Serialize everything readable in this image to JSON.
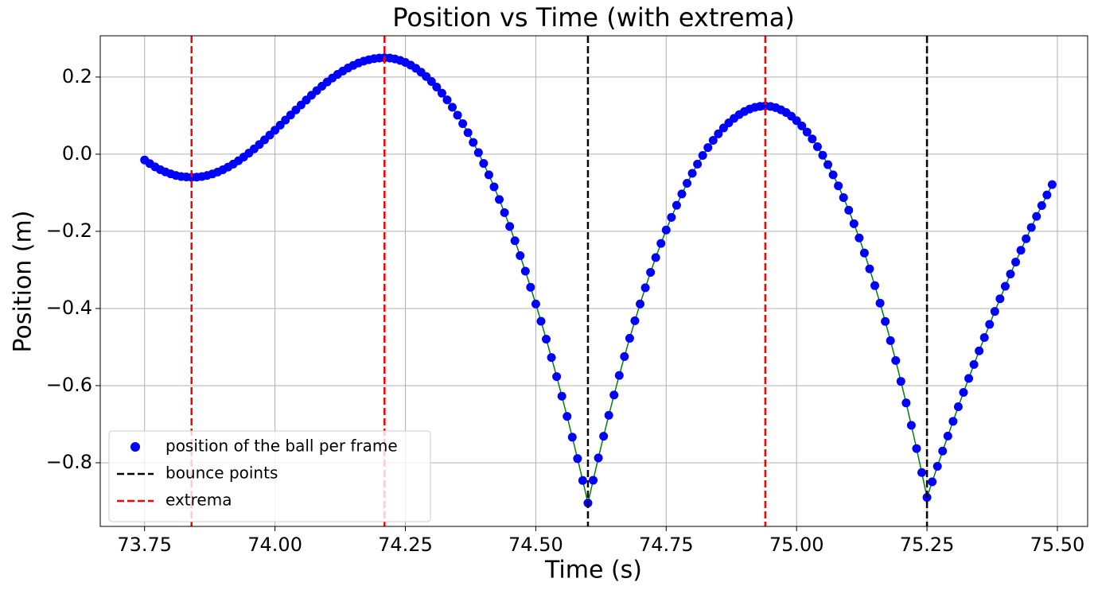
{
  "chart_data": {
    "type": "scatter",
    "title": "Position vs Time (with extrema)",
    "x_label": "Time (s)",
    "y_label": "Position (m)",
    "x": [
      73.75,
      73.76,
      73.77,
      73.78,
      73.79,
      73.8,
      73.81,
      73.82,
      73.83,
      73.84,
      73.85,
      73.86,
      73.87,
      73.88,
      73.89,
      73.9,
      73.91,
      73.92,
      73.93,
      73.94,
      73.95,
      73.96,
      73.97,
      73.98,
      73.99,
      74,
      74.01,
      74.02,
      74.03,
      74.04,
      74.05,
      74.06,
      74.07,
      74.08,
      74.09,
      74.1,
      74.11,
      74.12,
      74.13,
      74.14,
      74.15,
      74.16,
      74.17,
      74.18,
      74.19,
      74.2,
      74.21,
      74.22,
      74.23,
      74.24,
      74.25,
      74.26,
      74.27,
      74.28,
      74.29,
      74.3,
      74.31,
      74.32,
      74.33,
      74.34,
      74.35,
      74.36,
      74.37,
      74.38,
      74.39,
      74.4,
      74.41,
      74.42,
      74.43,
      74.44,
      74.45,
      74.46,
      74.47,
      74.48,
      74.49,
      74.5,
      74.51,
      74.52,
      74.53,
      74.54,
      74.55,
      74.56,
      74.57,
      74.58,
      74.59,
      74.6,
      74.61,
      74.62,
      74.63,
      74.64,
      74.65,
      74.66,
      74.67,
      74.68,
      74.69,
      74.7,
      74.71,
      74.72,
      74.73,
      74.74,
      74.75,
      74.76,
      74.77,
      74.78,
      74.79,
      74.8,
      74.81,
      74.82,
      74.83,
      74.84,
      74.85,
      74.86,
      74.87,
      74.88,
      74.89,
      74.9,
      74.91,
      74.92,
      74.93,
      74.94,
      74.95,
      74.96,
      74.97,
      74.98,
      74.99,
      75,
      75.01,
      75.02,
      75.03,
      75.04,
      75.05,
      75.06,
      75.07,
      75.08,
      75.09,
      75.1,
      75.11,
      75.12,
      75.13,
      75.14,
      75.15,
      75.16,
      75.17,
      75.18,
      75.19,
      75.2,
      75.21,
      75.22,
      75.23,
      75.24,
      75.25,
      75.26,
      75.27,
      75.28,
      75.29,
      75.3,
      75.31,
      75.32,
      75.33,
      75.34,
      75.35,
      75.36,
      75.37,
      75.38,
      75.39,
      75.4,
      75.41,
      75.42,
      75.43,
      75.44,
      75.45,
      75.46,
      75.47,
      75.48,
      75.49
    ],
    "series": [
      {
        "name": "position of the ball per frame",
        "color": "#0000ff",
        "line_color": "#008000",
        "values": [
          -0.015,
          -0.0244,
          -0.0328,
          -0.04,
          -0.046,
          -0.051,
          -0.055,
          -0.058,
          -0.059,
          -0.06,
          -0.0594,
          -0.0578,
          -0.055,
          -0.0512,
          -0.0463,
          -0.0403,
          -0.0334,
          -0.0256,
          -0.0169,
          -0.0074,
          0.0028,
          0.0137,
          0.0252,
          0.0372,
          0.0496,
          0.0623,
          0.0753,
          0.0884,
          0.1016,
          0.1147,
          0.1277,
          0.1404,
          0.1528,
          0.1648,
          0.1763,
          0.1872,
          0.1974,
          0.2069,
          0.2156,
          0.2234,
          0.2303,
          0.2363,
          0.2412,
          0.245,
          0.2478,
          0.2494,
          0.25,
          0.2492,
          0.247,
          0.2432,
          0.2379,
          0.231,
          0.2227,
          0.2128,
          0.2014,
          0.1885,
          0.1741,
          0.1582,
          0.1407,
          0.1217,
          0.1012,
          0.0792,
          0.0557,
          0.0306,
          0.0041,
          -0.024,
          -0.0536,
          -0.0847,
          -0.1174,
          -0.1515,
          -0.1872,
          -0.2244,
          -0.2631,
          -0.3033,
          -0.345,
          -0.3883,
          -0.4331,
          -0.4794,
          -0.5272,
          -0.5766,
          -0.6274,
          -0.6798,
          -0.7337,
          -0.7891,
          -0.846,
          -0.9044,
          -0.8453,
          -0.7874,
          -0.7312,
          -0.6769,
          -0.6243,
          -0.5735,
          -0.5245,
          -0.4773,
          -0.4319,
          -0.3882,
          -0.3463,
          -0.3062,
          -0.2679,
          -0.2314,
          -0.1966,
          -0.1637,
          -0.1325,
          -0.1031,
          -0.0755,
          -0.0496,
          -0.0256,
          -0.0033,
          0.0172,
          0.0359,
          0.0528,
          0.068,
          0.0813,
          0.0929,
          0.1027,
          0.1107,
          0.117,
          0.1214,
          0.1241,
          0.125,
          0.1239,
          0.1208,
          0.115,
          0.1081,
          0.0986,
          0.087,
          0.0733,
          0.0574,
          0.0395,
          0.0194,
          -0.0028,
          -0.0271,
          -0.0535,
          -0.082,
          -0.1126,
          -0.1453,
          -0.1802,
          -0.2171,
          -0.2562,
          -0.2974,
          -0.3407,
          -0.3861,
          -0.4336,
          -0.4833,
          -0.535,
          -0.5889,
          -0.6448,
          -0.7029,
          -0.7631,
          -0.8254,
          -0.8898,
          -0.8493,
          -0.8092,
          -0.7697,
          -0.7308,
          -0.6925,
          -0.6548,
          -0.6177,
          -0.5812,
          -0.5453,
          -0.51,
          -0.4753,
          -0.4412,
          -0.4077,
          -0.3748,
          -0.3425,
          -0.3108,
          -0.2797,
          -0.2492,
          -0.2193,
          -0.19,
          -0.1613,
          -0.1332,
          -0.1057,
          -0.0788
        ]
      }
    ],
    "vlines": [
      {
        "name": "bounce points",
        "color": "#000000",
        "x": [
          74.6,
          75.25
        ]
      },
      {
        "name": "extrema",
        "color": "#ff0000",
        "x": [
          73.84,
          74.21,
          74.94
        ]
      }
    ],
    "xlim": [
      73.665,
      75.558
    ],
    "ylim": [
      -0.965,
      0.307
    ],
    "xticks": [
      73.75,
      {
        "value": 74,
        "label": "74.00"
      },
      74.25,
      {
        "value": 74.5,
        "label": "74.50"
      },
      74.75,
      {
        "value": 75,
        "label": "75.00"
      },
      75.25,
      {
        "value": 75.5,
        "label": "75.50"
      }
    ],
    "yticks": [
      0.2,
      {
        "value": 0,
        "label": "0.0"
      },
      {
        "value": -0.2,
        "label": "−0.2"
      },
      {
        "value": -0.4,
        "label": "−0.4"
      },
      {
        "value": -0.6,
        "label": "−0.6"
      },
      {
        "value": -0.8,
        "label": "−0.8"
      }
    ],
    "grid": true,
    "legend": "lower left"
  }
}
